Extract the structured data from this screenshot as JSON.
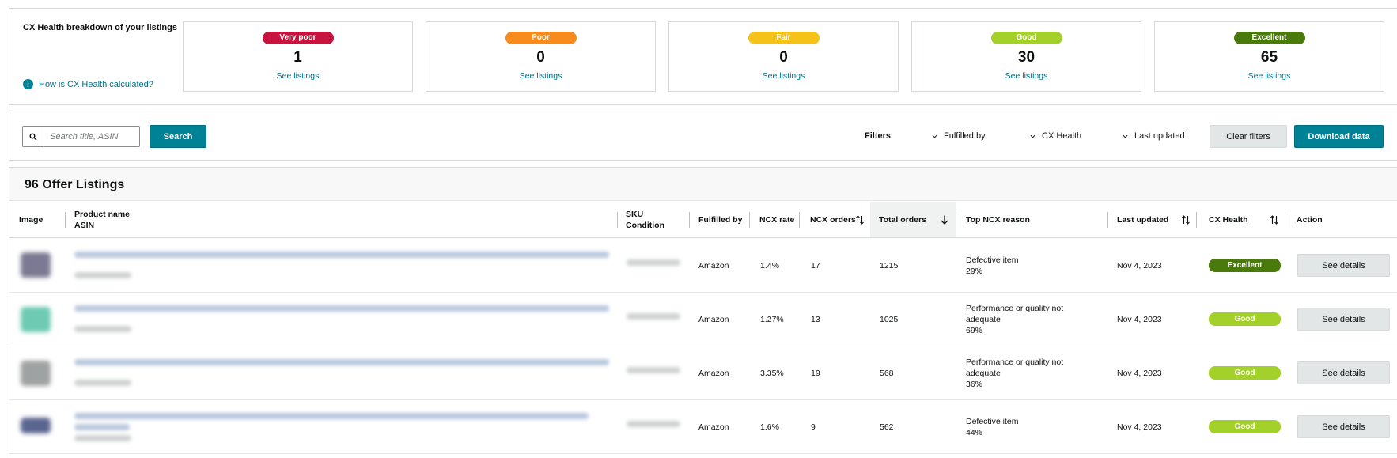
{
  "summary": {
    "title": "CX Health breakdown of your listings",
    "help_link": "How is CX Health calculated?",
    "cards": [
      {
        "label": "Very poor",
        "count": "1",
        "link": "See listings",
        "color": "#c7143e"
      },
      {
        "label": "Poor",
        "count": "0",
        "link": "See listings",
        "color": "#f68b1e"
      },
      {
        "label": "Fair",
        "count": "0",
        "link": "See listings",
        "color": "#f5c21b"
      },
      {
        "label": "Good",
        "count": "30",
        "link": "See listings",
        "color": "#a3d12a"
      },
      {
        "label": "Excellent",
        "count": "65",
        "link": "See listings",
        "color": "#4a7a0c"
      }
    ]
  },
  "toolbar": {
    "search_placeholder": "Search title, ASIN",
    "search_button": "Search",
    "filters_label": "Filters",
    "filter_fulfilled_by": "Fulfilled by",
    "filter_cx_health": "CX Health",
    "filter_last_updated": "Last updated",
    "clear_filters": "Clear filters",
    "download_data": "Download data"
  },
  "listings": {
    "title": "96 Offer Listings",
    "headers": {
      "image": "Image",
      "product_name": "Product name",
      "asin": "ASIN",
      "sku": "SKU",
      "condition": "Condition",
      "fulfilled_by": "Fulfilled by",
      "ncx_rate": "NCX rate",
      "ncx_orders": "NCX orders",
      "total_orders": "Total orders",
      "top_ncx_reason": "Top NCX reason",
      "last_updated": "Last updated",
      "cx_health": "CX Health",
      "action": "Action"
    },
    "rows": [
      {
        "fulfilled_by": "Amazon",
        "ncx_rate": "1.4%",
        "ncx_orders": "17",
        "total_orders": "1215",
        "reason": "Defective item",
        "reason_pct": "29%",
        "last_updated": "Nov 4, 2023",
        "health": "Excellent",
        "health_color": "#4a7a0c",
        "action": "See details"
      },
      {
        "fulfilled_by": "Amazon",
        "ncx_rate": "1.27%",
        "ncx_orders": "13",
        "total_orders": "1025",
        "reason": "Performance or quality not adequate",
        "reason_pct": "69%",
        "last_updated": "Nov 4, 2023",
        "health": "Good",
        "health_color": "#a3d12a",
        "action": "See details"
      },
      {
        "fulfilled_by": "Amazon",
        "ncx_rate": "3.35%",
        "ncx_orders": "19",
        "total_orders": "568",
        "reason": "Performance or quality not adequate",
        "reason_pct": "36%",
        "last_updated": "Nov 4, 2023",
        "health": "Good",
        "health_color": "#a3d12a",
        "action": "See details"
      },
      {
        "fulfilled_by": "Amazon",
        "ncx_rate": "1.6%",
        "ncx_orders": "9",
        "total_orders": "562",
        "reason": "Defective item",
        "reason_pct": "44%",
        "last_updated": "Nov 4, 2023",
        "health": "Good",
        "health_color": "#a3d12a",
        "action": "See details"
      }
    ]
  }
}
